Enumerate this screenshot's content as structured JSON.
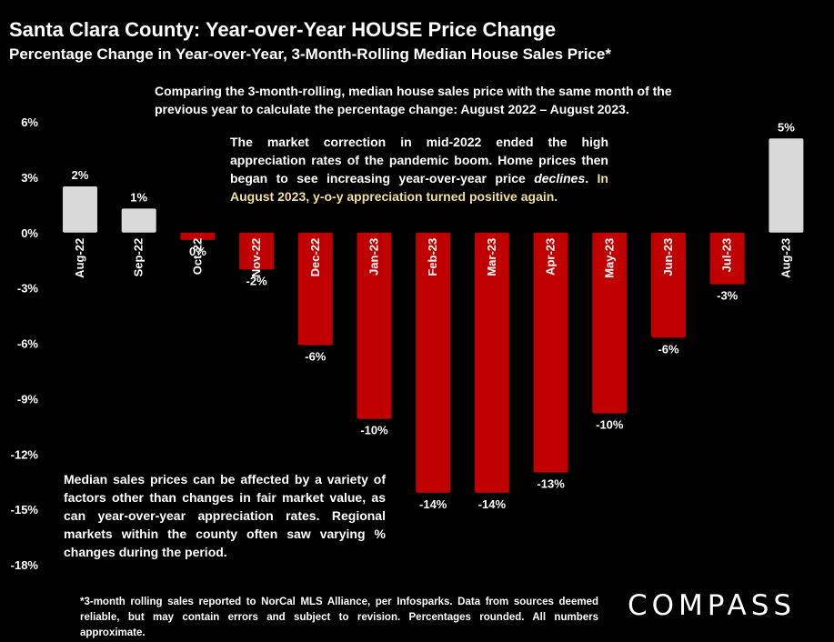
{
  "header": {
    "title": "Santa Clara County: Year-over-Year HOUSE Price Change",
    "subtitle": "Percentage Change in Year-over-Year, 3-Month-Rolling Median House Sales Price*"
  },
  "annotations": {
    "top_note": "Comparing the 3-month-rolling, median house sales price with the same month of the previous year to calculate the percentage change: August 2022 – August 2023.",
    "mid_note_1": "The market correction in mid-2022 ended the high appreciation rates of the pandemic boom.  Home prices then began to see increasing year-over-year price ",
    "mid_note_em": "declines",
    "mid_note_2": ".",
    "mid_note_highlight": "In August 2023, y-o-y appreciation turned positive again.",
    "bottom_note": "Median sales prices can be affected by a variety of factors other than changes in fair market value, as can year-over-year appreciation rates. Regional markets within the county often saw varying % changes during the period."
  },
  "footer": {
    "footnote": "*3-month rolling sales reported to NorCal MLS Alliance, per Infosparks. Data from sources deemed reliable, but may contain errors and subject to revision. Percentages rounded. All numbers approximate.",
    "logo": "COMPASS"
  },
  "colors": {
    "positive": "#d9d9d9",
    "negative": "#c00000",
    "highlight": "#f2df9a",
    "background": "#000000",
    "text": "#ffffff"
  },
  "chart_data": {
    "type": "bar",
    "categories": [
      "Aug-22",
      "Sep-22",
      "Oct-22",
      "Nov-22",
      "Dec-22",
      "Jan-23",
      "Feb-23",
      "Mar-23",
      "Apr-23",
      "May-23",
      "Jun-23",
      "Jul-23",
      "Aug-23"
    ],
    "values": [
      2.5,
      1.3,
      -0.4,
      -2.0,
      -6.1,
      -10.1,
      -14.1,
      -14.1,
      -13.0,
      -9.8,
      -5.7,
      -2.8,
      5.1
    ],
    "data_labels": [
      "2%",
      "1%",
      "0%",
      "-2%",
      "-6%",
      "-10%",
      "-14%",
      "-14%",
      "-13%",
      "-10%",
      "-6%",
      "-3%",
      "5%"
    ],
    "y_ticks": [
      6,
      3,
      0,
      -3,
      -6,
      -9,
      -12,
      -15,
      -18
    ],
    "y_tick_labels": [
      "6%",
      "3%",
      "0%",
      "-3%",
      "-6%",
      "-9%",
      "-12%",
      "-15%",
      "-18%"
    ],
    "ylim": [
      -18,
      6
    ],
    "grid": false,
    "legend": "none"
  }
}
